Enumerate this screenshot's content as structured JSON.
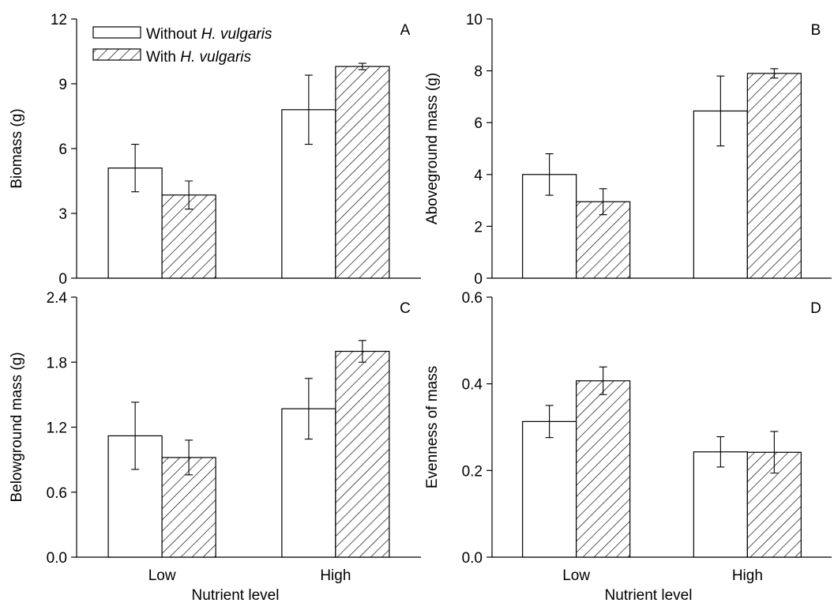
{
  "legend": {
    "entries": [
      {
        "prefix": "Without ",
        "italic": "H. vulgaris",
        "style": "plain"
      },
      {
        "prefix": "With ",
        "italic": "H. vulgaris",
        "style": "hatched"
      }
    ]
  },
  "chart_data": [
    {
      "panel": "A",
      "type": "bar",
      "categories": [
        "Low",
        "High"
      ],
      "ylabel": "Biomass (g)",
      "xlabel": "",
      "ylim": [
        0,
        12
      ],
      "yticks": [
        0,
        3,
        6,
        9,
        12
      ],
      "ytick_labels": [
        "0",
        "3",
        "6",
        "9",
        "12"
      ],
      "show_category_labels": false,
      "series": [
        {
          "name": "Without H. vulgaris",
          "values": [
            5.1,
            7.8
          ],
          "errors": [
            1.1,
            1.6
          ]
        },
        {
          "name": "With H. vulgaris",
          "values": [
            3.85,
            9.8
          ],
          "errors": [
            0.65,
            0.15
          ]
        }
      ]
    },
    {
      "panel": "B",
      "type": "bar",
      "categories": [
        "Low",
        "High"
      ],
      "ylabel": "Aboveground mass (g)",
      "xlabel": "",
      "ylim": [
        0,
        10
      ],
      "yticks": [
        0,
        2,
        4,
        6,
        8,
        10
      ],
      "ytick_labels": [
        "0",
        "2",
        "4",
        "6",
        "8",
        "10"
      ],
      "show_category_labels": false,
      "series": [
        {
          "name": "Without H. vulgaris",
          "values": [
            4.0,
            6.45
          ],
          "errors": [
            0.8,
            1.35
          ]
        },
        {
          "name": "With H. vulgaris",
          "values": [
            2.95,
            7.9
          ],
          "errors": [
            0.5,
            0.18
          ]
        }
      ]
    },
    {
      "panel": "C",
      "type": "bar",
      "categories": [
        "Low",
        "High"
      ],
      "ylabel": "Belowground mass (g)",
      "xlabel": "Nutrient level",
      "ylim": [
        0,
        2.4
      ],
      "yticks": [
        0,
        0.6,
        1.2,
        1.8,
        2.4
      ],
      "ytick_labels": [
        "0.0",
        "0.6",
        "1.2",
        "1.8",
        "2.4"
      ],
      "show_category_labels": true,
      "series": [
        {
          "name": "Without H. vulgaris",
          "values": [
            1.12,
            1.37
          ],
          "errors": [
            0.31,
            0.28
          ]
        },
        {
          "name": "With H. vulgaris",
          "values": [
            0.92,
            1.9
          ],
          "errors": [
            0.16,
            0.1
          ]
        }
      ]
    },
    {
      "panel": "D",
      "type": "bar",
      "categories": [
        "Low",
        "High"
      ],
      "ylabel": "Evenness of mass",
      "xlabel": "Nutrient level",
      "ylim": [
        0,
        0.6
      ],
      "yticks": [
        0,
        0.2,
        0.4,
        0.6
      ],
      "ytick_labels": [
        "0.0",
        "0.2",
        "0.4",
        "0.6"
      ],
      "show_category_labels": true,
      "series": [
        {
          "name": "Without H. vulgaris",
          "values": [
            0.313,
            0.243
          ],
          "errors": [
            0.037,
            0.035
          ]
        },
        {
          "name": "With H. vulgaris",
          "values": [
            0.407,
            0.242
          ],
          "errors": [
            0.032,
            0.048
          ]
        }
      ]
    }
  ]
}
